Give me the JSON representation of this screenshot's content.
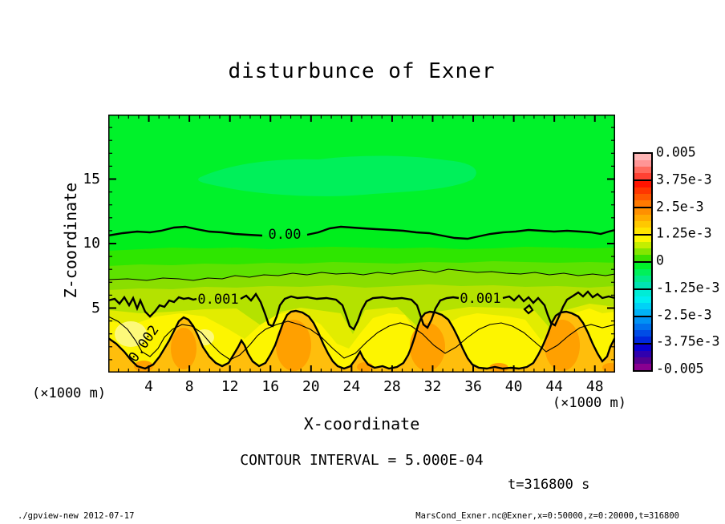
{
  "title": "disturbunce of Exner",
  "axes": {
    "x": {
      "label": "X-coordinate",
      "unit": "(×1000 m)",
      "min": 0,
      "max": 50,
      "minor_step": 1,
      "major_step": 4,
      "tick_labels": [
        "4",
        "8",
        "12",
        "16",
        "20",
        "24",
        "28",
        "32",
        "36",
        "40",
        "44",
        "48"
      ]
    },
    "y": {
      "label": "Z-coordinate",
      "unit": "(×1000 m)",
      "min": 0,
      "max": 20,
      "minor_step": 1,
      "major_step": 5,
      "tick_labels": [
        "5",
        "10",
        "15"
      ]
    }
  },
  "annotations": {
    "contour_interval": "CONTOUR INTERVAL = 5.000E-04",
    "time": "t=316800 s",
    "footer_left": "./gpview-new  2012-07-17",
    "footer_right": "MarsCond_Exner.nc@Exner,x=0:50000,z=0:20000,t=316800"
  },
  "contour_labels": {
    "c0": "0.00",
    "c1a": "0.001",
    "c1b": "0.001",
    "c2": "0.002"
  },
  "colorbar": {
    "labels": [
      "0.005",
      "3.75e-3",
      "2.5e-3",
      "1.25e-3",
      "0",
      "-1.25e-3",
      "-2.5e-3",
      "-3.75e-3",
      "-0.005"
    ],
    "colors": [
      "#ffb6b6",
      "#ff9595",
      "#ff6a5e",
      "#ff4133",
      "#ff1400",
      "#ff3600",
      "#ff5800",
      "#ff7a00",
      "#ff9000",
      "#ffac00",
      "#ffc800",
      "#ffe400",
      "#fbf600",
      "#c4ee00",
      "#84e600",
      "#3ce000",
      "#00f22a",
      "#00f05a",
      "#00ea8a",
      "#00e4b2",
      "#00ecd6",
      "#00eef0",
      "#00d2f6",
      "#00b2f6",
      "#0092f4",
      "#0070ee",
      "#004ce6",
      "#0028de",
      "#0a00d2",
      "#3000ae",
      "#560090",
      "#8a0090"
    ]
  },
  "plot_colors": {
    "bg": "#00f22a",
    "blob": "#00f05a",
    "g1": "#00ee1c",
    "g2": "#2ee600",
    "g3": "#5ee200",
    "g4": "#8ade00",
    "g5": "#b4e200",
    "g6": "#e2ec00",
    "g7": "#fdf500",
    "pale": "#fdf97a",
    "o1": "#ffbe0c",
    "o2": "#ffa000",
    "line": "#000000"
  },
  "chart_data": {
    "type": "filled-contour",
    "title": "disturbunce of Exner",
    "xlabel": "X-coordinate (×1000 m)",
    "ylabel": "Z-coordinate (×1000 m)",
    "xlim": [
      0,
      50
    ],
    "ylim": [
      0,
      20
    ],
    "contour_interval": 0.0005,
    "labeled_levels": [
      0.0,
      0.001,
      0.002
    ],
    "colorbar_levels": [
      0.005,
      0.00375,
      0.0025,
      0.00125,
      0,
      -0.00125,
      -0.0025,
      -0.00375,
      -0.005
    ],
    "x_samples": [
      0,
      5,
      10,
      15,
      20,
      25,
      30,
      35,
      40,
      45,
      50
    ],
    "contours": [
      {
        "level": 0.0,
        "z": [
          10.6,
          11.0,
          11.1,
          11.0,
          10.8,
          10.6,
          10.5,
          11.0,
          11.2,
          11.0,
          11.2
        ]
      },
      {
        "level": 0.0005,
        "z": [
          7.2,
          7.3,
          7.5,
          7.6,
          7.5,
          7.6,
          7.8,
          7.7,
          7.6,
          7.5,
          7.6
        ]
      },
      {
        "level": 0.001,
        "z": [
          5.6,
          5.5,
          4.8,
          5.6,
          5.2,
          4.3,
          5.5,
          5.4,
          4.5,
          5.7,
          5.6
        ]
      },
      {
        "level": 0.0015,
        "z": [
          4.3,
          2.2,
          4.4,
          3.0,
          4.5,
          1.6,
          4.3,
          2.6,
          4.2,
          2.0,
          4.1
        ]
      },
      {
        "level": 0.002,
        "z": [
          3.0,
          4.4,
          1.0,
          4.6,
          1.2,
          0.5,
          4.5,
          1.0,
          2.5,
          4.6,
          3.0
        ]
      }
    ],
    "features": {
      "warm_surface_plumes_x": [
        1.5,
        7.4,
        18.3,
        31.4,
        44.9
      ],
      "plume_top_z": 4.7,
      "plume_core_value": 0.0025,
      "cool_patch": {
        "x_range": [
          9,
          37
        ],
        "z_range": [
          12,
          16
        ],
        "approx_value": -0.0004
      }
    },
    "legend_position": "right-colorbar",
    "grid": false
  }
}
